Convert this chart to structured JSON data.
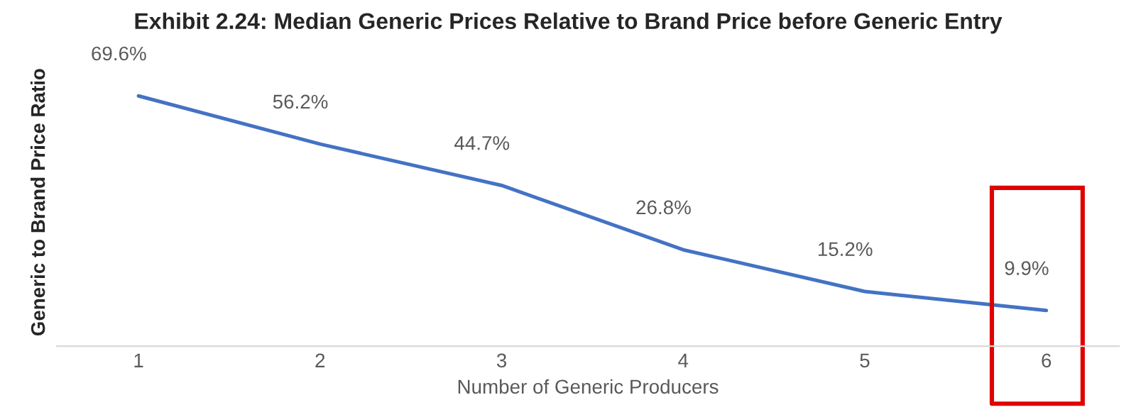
{
  "chart_data": {
    "type": "line",
    "title": "Exhibit 2.24: Median Generic Prices Relative to Brand Price before Generic Entry",
    "xlabel": "Number of Generic Producers",
    "ylabel": "Generic to Brand Price Ratio",
    "categories": [
      "1",
      "2",
      "3",
      "4",
      "5",
      "6"
    ],
    "series": [
      {
        "color": "#4472c4",
        "values": [
          69.6,
          56.2,
          44.7,
          26.8,
          15.2,
          9.9
        ],
        "value_labels": [
          "69.6%",
          "56.2%",
          "44.7%",
          "26.8%",
          "15.2%",
          "9.9%"
        ]
      }
    ],
    "tick_labels": "x",
    "grid": false,
    "marker": "none",
    "line_style": "solid"
  }
}
